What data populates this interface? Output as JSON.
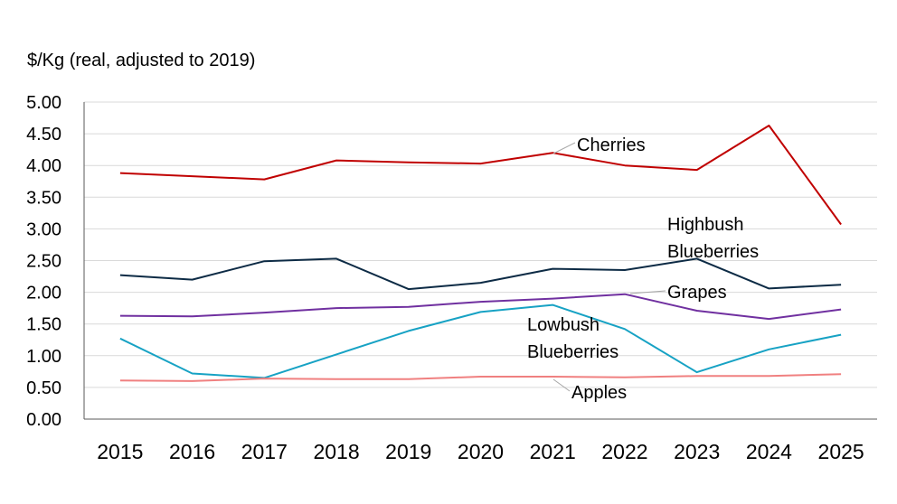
{
  "chart_data": {
    "type": "line",
    "ylabel": "$/Kg (real, adjusted to 2019)",
    "xlabel": "",
    "categories": [
      "2015",
      "2016",
      "2017",
      "2018",
      "2019",
      "2020",
      "2021",
      "2022",
      "2023",
      "2024",
      "2025"
    ],
    "ylim": [
      0,
      5
    ],
    "yticks": [
      "0.00",
      "0.50",
      "1.00",
      "1.50",
      "2.00",
      "2.50",
      "3.00",
      "3.50",
      "4.00",
      "4.50",
      "5.00"
    ],
    "grid": true,
    "series": [
      {
        "name": "Cherries",
        "color": "#C00000",
        "values": [
          3.88,
          3.83,
          3.78,
          4.08,
          4.05,
          4.03,
          4.2,
          4.0,
          3.93,
          4.63,
          3.07
        ]
      },
      {
        "name": "Highbush Blueberries",
        "color": "#0D2B45",
        "values": [
          2.27,
          2.2,
          2.49,
          2.53,
          2.05,
          2.15,
          2.37,
          2.35,
          2.53,
          2.06,
          2.12
        ]
      },
      {
        "name": "Grapes",
        "color": "#7030A0",
        "values": [
          1.63,
          1.62,
          1.68,
          1.75,
          1.77,
          1.85,
          1.9,
          1.97,
          1.71,
          1.58,
          1.73
        ]
      },
      {
        "name": "Lowbush Blueberries",
        "color": "#17A2C4",
        "values": [
          1.27,
          0.72,
          0.65,
          1.02,
          1.39,
          1.69,
          1.8,
          1.42,
          0.74,
          1.1,
          1.33
        ]
      },
      {
        "name": "Apples",
        "color": "#F08080",
        "values": [
          0.61,
          0.6,
          0.64,
          0.63,
          0.63,
          0.67,
          0.67,
          0.66,
          0.68,
          0.68,
          0.71
        ]
      }
    ],
    "annotations": [
      {
        "series": "Cherries",
        "lines": [
          "Cherries"
        ]
      },
      {
        "series": "Highbush Blueberries",
        "lines": [
          "Highbush",
          "Blueberries"
        ]
      },
      {
        "series": "Grapes",
        "lines": [
          "Grapes"
        ]
      },
      {
        "series": "Lowbush Blueberries",
        "lines": [
          "Lowbush",
          "Blueberries"
        ]
      },
      {
        "series": "Apples",
        "lines": [
          "Apples"
        ]
      }
    ]
  }
}
